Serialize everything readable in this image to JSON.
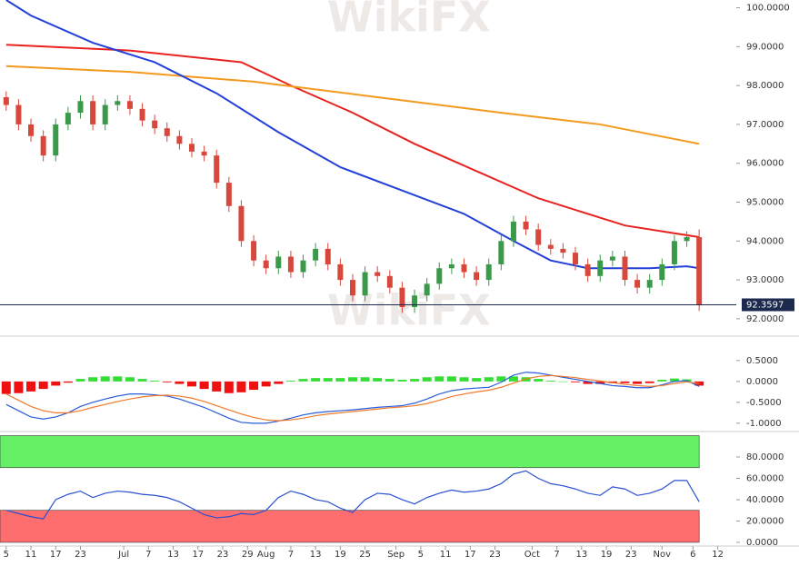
{
  "watermark": "WikiFX",
  "chart_data": [
    {
      "type": "candlestick",
      "x": [
        0,
        2,
        4,
        6,
        8,
        10,
        12,
        14,
        16,
        18,
        20,
        22,
        24,
        26,
        28,
        30,
        32,
        34,
        36,
        38,
        40,
        42,
        44,
        46,
        48,
        50,
        52,
        54,
        56,
        58,
        60,
        62,
        64,
        66,
        68,
        70,
        72,
        74,
        76,
        78,
        80,
        82,
        84,
        86,
        88,
        90,
        92,
        94,
        96,
        98,
        100,
        102,
        104,
        106,
        108,
        110,
        112
      ],
      "ohlc": [
        [
          97.7,
          97.85,
          97.35,
          97.5
        ],
        [
          97.5,
          97.65,
          96.85,
          97.0
        ],
        [
          97.0,
          97.15,
          96.55,
          96.7
        ],
        [
          96.7,
          96.85,
          96.05,
          96.2
        ],
        [
          96.2,
          97.15,
          96.05,
          97.0
        ],
        [
          97.0,
          97.45,
          96.85,
          97.3
        ],
        [
          97.3,
          97.75,
          97.15,
          97.6
        ],
        [
          97.6,
          97.75,
          96.85,
          97.0
        ],
        [
          97.0,
          97.65,
          96.85,
          97.5
        ],
        [
          97.5,
          97.75,
          97.35,
          97.6
        ],
        [
          97.6,
          97.75,
          97.25,
          97.4
        ],
        [
          97.4,
          97.55,
          96.95,
          97.1
        ],
        [
          97.1,
          97.25,
          96.75,
          96.9
        ],
        [
          96.9,
          97.05,
          96.55,
          96.7
        ],
        [
          96.7,
          96.85,
          96.35,
          96.5
        ],
        [
          96.5,
          96.65,
          96.15,
          96.3
        ],
        [
          96.3,
          96.45,
          96.05,
          96.2
        ],
        [
          96.2,
          96.35,
          95.35,
          95.5
        ],
        [
          95.5,
          95.65,
          94.75,
          94.9
        ],
        [
          94.9,
          95.05,
          93.85,
          94.0
        ],
        [
          94.0,
          94.15,
          93.35,
          93.5
        ],
        [
          93.5,
          93.65,
          93.15,
          93.3
        ],
        [
          93.3,
          93.75,
          93.15,
          93.6
        ],
        [
          93.6,
          93.75,
          93.05,
          93.2
        ],
        [
          93.2,
          93.65,
          93.05,
          93.5
        ],
        [
          93.5,
          93.95,
          93.35,
          93.8
        ],
        [
          93.8,
          93.95,
          93.25,
          93.4
        ],
        [
          93.4,
          93.55,
          92.85,
          93.0
        ],
        [
          93.0,
          93.15,
          92.45,
          92.6
        ],
        [
          92.6,
          93.35,
          92.45,
          93.2
        ],
        [
          93.2,
          93.35,
          92.95,
          93.1
        ],
        [
          93.1,
          93.25,
          92.65,
          92.8
        ],
        [
          92.8,
          92.95,
          92.15,
          92.3
        ],
        [
          92.3,
          92.75,
          92.15,
          92.6
        ],
        [
          92.6,
          93.05,
          92.45,
          92.9
        ],
        [
          92.9,
          93.45,
          92.75,
          93.3
        ],
        [
          93.3,
          93.55,
          93.15,
          93.4
        ],
        [
          93.4,
          93.55,
          93.05,
          93.2
        ],
        [
          93.2,
          93.35,
          92.85,
          93.0
        ],
        [
          93.0,
          93.55,
          92.85,
          93.4
        ],
        [
          93.4,
          94.15,
          93.25,
          94.0
        ],
        [
          94.0,
          94.65,
          93.85,
          94.5
        ],
        [
          94.5,
          94.65,
          94.15,
          94.3
        ],
        [
          94.3,
          94.45,
          93.75,
          93.9
        ],
        [
          93.9,
          94.05,
          93.65,
          93.8
        ],
        [
          93.8,
          93.95,
          93.55,
          93.7
        ],
        [
          93.7,
          93.85,
          93.25,
          93.4
        ],
        [
          93.4,
          93.55,
          92.95,
          93.1
        ],
        [
          93.1,
          93.65,
          92.95,
          93.5
        ],
        [
          93.5,
          93.75,
          93.35,
          93.6
        ],
        [
          93.6,
          93.75,
          92.85,
          93.0
        ],
        [
          93.0,
          93.15,
          92.65,
          92.8
        ],
        [
          92.8,
          93.15,
          92.65,
          93.0
        ],
        [
          93.0,
          93.55,
          92.85,
          93.4
        ],
        [
          93.4,
          94.15,
          93.25,
          94.0
        ],
        [
          94.0,
          94.25,
          93.85,
          94.1
        ],
        [
          94.1,
          94.3,
          92.2,
          92.36
        ]
      ],
      "up_color": "#3a9a4a",
      "down_color": "#d8473c",
      "lines": [
        {
          "color": "#e8231f",
          "x": [
            0,
            20,
            38,
            46,
            56,
            66,
            76,
            86,
            100,
            112
          ],
          "values": [
            99.05,
            98.9,
            98.6,
            98.0,
            97.3,
            96.5,
            95.8,
            95.1,
            94.4,
            94.1
          ]
        },
        {
          "color": "#f39a1e",
          "x": [
            0,
            20,
            40,
            60,
            80,
            96,
            112
          ],
          "values": [
            98.5,
            98.35,
            98.1,
            97.7,
            97.3,
            97.0,
            96.5
          ]
        },
        {
          "color": "#2340d8",
          "x": [
            0,
            4,
            14,
            24,
            34,
            44,
            54,
            64,
            74,
            82,
            88,
            94,
            104,
            110,
            112
          ],
          "values": [
            100.2,
            99.8,
            99.1,
            98.6,
            97.8,
            96.8,
            95.9,
            95.3,
            94.7,
            94.0,
            93.5,
            93.3,
            93.3,
            93.35,
            93.3
          ]
        }
      ],
      "last_price": 92.3597,
      "last_color": "#1c2a4e",
      "xlim": [
        -1,
        118
      ],
      "ylim": [
        91.6,
        100.2
      ],
      "yticks": [
        {
          "value": 92,
          "label": "92.0000"
        },
        {
          "value": 93,
          "label": "93.0000"
        },
        {
          "value": 94,
          "label": "94.0000"
        },
        {
          "value": 95,
          "label": "95.0000"
        },
        {
          "value": 96,
          "label": "96.0000"
        },
        {
          "value": 97,
          "label": "97.0000"
        },
        {
          "value": 98,
          "label": "98.0000"
        },
        {
          "value": 99,
          "label": "99.0000"
        },
        {
          "value": 100,
          "label": "100.0000"
        }
      ]
    },
    {
      "type": "macd",
      "x": [
        0,
        2,
        4,
        6,
        8,
        10,
        12,
        14,
        16,
        18,
        20,
        22,
        24,
        26,
        28,
        30,
        32,
        34,
        36,
        38,
        40,
        42,
        44,
        46,
        48,
        50,
        52,
        54,
        56,
        58,
        60,
        62,
        64,
        66,
        68,
        70,
        72,
        74,
        76,
        78,
        80,
        82,
        84,
        86,
        88,
        90,
        92,
        94,
        96,
        98,
        100,
        102,
        104,
        106,
        108,
        110,
        112
      ],
      "histogram": [
        -0.3,
        -0.28,
        -0.24,
        -0.18,
        -0.1,
        -0.03,
        0.06,
        0.1,
        0.12,
        0.12,
        0.1,
        0.06,
        0.02,
        -0.02,
        -0.06,
        -0.12,
        -0.18,
        -0.24,
        -0.28,
        -0.26,
        -0.2,
        -0.12,
        -0.06,
        0.02,
        0.06,
        0.08,
        0.08,
        0.08,
        0.1,
        0.1,
        0.08,
        0.06,
        0.04,
        0.06,
        0.1,
        0.12,
        0.12,
        0.1,
        0.08,
        0.1,
        0.12,
        0.12,
        0.1,
        0.06,
        0.02,
        0,
        -0.02,
        -0.06,
        -0.06,
        -0.04,
        -0.04,
        -0.06,
        -0.04,
        0.04,
        0.07,
        0.05,
        -0.1
      ],
      "positive_color": "#33dd33",
      "negative_color": "#ee1111",
      "series": [
        {
          "color": "#2a5bd8",
          "values": [
            -0.55,
            -0.7,
            -0.85,
            -0.9,
            -0.85,
            -0.75,
            -0.6,
            -0.5,
            -0.42,
            -0.35,
            -0.3,
            -0.3,
            -0.32,
            -0.35,
            -0.42,
            -0.52,
            -0.62,
            -0.75,
            -0.88,
            -0.98,
            -1.0,
            -1.0,
            -0.95,
            -0.88,
            -0.8,
            -0.75,
            -0.72,
            -0.7,
            -0.68,
            -0.65,
            -0.62,
            -0.6,
            -0.58,
            -0.52,
            -0.42,
            -0.3,
            -0.22,
            -0.18,
            -0.16,
            -0.14,
            -0.02,
            0.15,
            0.22,
            0.2,
            0.15,
            0.1,
            0.05,
            0,
            -0.05,
            -0.1,
            -0.12,
            -0.15,
            -0.15,
            -0.08,
            0.0,
            0.02,
            -0.12
          ]
        },
        {
          "color": "#f07a2a",
          "values": [
            -0.3,
            -0.45,
            -0.6,
            -0.7,
            -0.75,
            -0.75,
            -0.7,
            -0.62,
            -0.55,
            -0.48,
            -0.42,
            -0.37,
            -0.34,
            -0.33,
            -0.35,
            -0.4,
            -0.48,
            -0.58,
            -0.68,
            -0.78,
            -0.86,
            -0.92,
            -0.94,
            -0.92,
            -0.88,
            -0.82,
            -0.78,
            -0.75,
            -0.72,
            -0.69,
            -0.66,
            -0.63,
            -0.61,
            -0.58,
            -0.53,
            -0.45,
            -0.36,
            -0.3,
            -0.25,
            -0.21,
            -0.14,
            -0.04,
            0.06,
            0.12,
            0.14,
            0.12,
            0.09,
            0.05,
            0.01,
            -0.03,
            -0.07,
            -0.1,
            -0.12,
            -0.1,
            -0.05,
            -0.01,
            -0.05
          ]
        }
      ],
      "xlim": [
        -1,
        118
      ],
      "ylim": [
        -1.09,
        1.04
      ],
      "yticks": [
        {
          "value": -1,
          "label": "-1.0000"
        },
        {
          "value": -0.5,
          "label": "-0.5000"
        },
        {
          "value": 0,
          "label": "0.0000"
        },
        {
          "value": 0.5,
          "label": "0.5000"
        }
      ]
    },
    {
      "type": "line",
      "x": [
        0,
        2,
        4,
        6,
        8,
        10,
        12,
        14,
        16,
        18,
        20,
        22,
        24,
        26,
        28,
        30,
        32,
        34,
        36,
        38,
        40,
        42,
        44,
        46,
        48,
        50,
        52,
        54,
        56,
        58,
        60,
        62,
        64,
        66,
        68,
        70,
        72,
        74,
        76,
        78,
        80,
        82,
        84,
        86,
        88,
        90,
        92,
        94,
        96,
        98,
        100,
        102,
        104,
        106,
        108,
        110,
        112
      ],
      "series": [
        {
          "color": "#2a4fd0",
          "values": [
            30,
            27,
            24,
            22,
            40,
            45,
            48,
            42,
            46,
            48,
            47,
            45,
            44,
            42,
            38,
            32,
            26,
            23,
            24,
            27,
            26,
            30,
            42,
            48,
            45,
            40,
            38,
            32,
            28,
            40,
            46,
            45,
            40,
            36,
            42,
            46,
            49,
            47,
            48,
            50,
            55,
            64,
            67,
            60,
            55,
            53,
            50,
            46,
            44,
            52,
            50,
            44,
            46,
            50,
            58,
            58,
            38
          ]
        }
      ],
      "bands": [
        {
          "from": 70,
          "to": 100,
          "color": "#66f066"
        },
        {
          "from": 0,
          "to": 30,
          "color": "#ff6e6e"
        }
      ],
      "xlim": [
        -1,
        118
      ],
      "ylim": [
        -2.6,
        101.3
      ],
      "yticks": [
        {
          "value": 0,
          "label": "0.0000"
        },
        {
          "value": 20,
          "label": "20.0000"
        },
        {
          "value": 40,
          "label": "40.0000"
        },
        {
          "value": 60,
          "label": "60.0000"
        },
        {
          "value": 80,
          "label": "80.0000"
        }
      ],
      "xticks": [
        {
          "value": 0,
          "label": "5"
        },
        {
          "value": 4,
          "label": "11"
        },
        {
          "value": 8,
          "label": "17"
        },
        {
          "value": 12,
          "label": "23"
        },
        {
          "value": 19,
          "label": "Jul"
        },
        {
          "value": 23,
          "label": "7"
        },
        {
          "value": 27,
          "label": "13"
        },
        {
          "value": 31,
          "label": "17"
        },
        {
          "value": 35,
          "label": "23"
        },
        {
          "value": 39,
          "label": "29"
        },
        {
          "value": 42,
          "label": "Aug"
        },
        {
          "value": 46,
          "label": "7"
        },
        {
          "value": 50,
          "label": "13"
        },
        {
          "value": 54,
          "label": "19"
        },
        {
          "value": 58,
          "label": "25"
        },
        {
          "value": 63,
          "label": "Sep"
        },
        {
          "value": 67,
          "label": "5"
        },
        {
          "value": 71,
          "label": "11"
        },
        {
          "value": 75,
          "label": "17"
        },
        {
          "value": 79,
          "label": "23"
        },
        {
          "value": 85,
          "label": "Oct"
        },
        {
          "value": 89,
          "label": "7"
        },
        {
          "value": 93,
          "label": "13"
        },
        {
          "value": 97,
          "label": "19"
        },
        {
          "value": 101,
          "label": "23"
        },
        {
          "value": 106,
          "label": "Nov"
        },
        {
          "value": 111,
          "label": "6"
        },
        {
          "value": 115,
          "label": "12"
        }
      ]
    }
  ]
}
